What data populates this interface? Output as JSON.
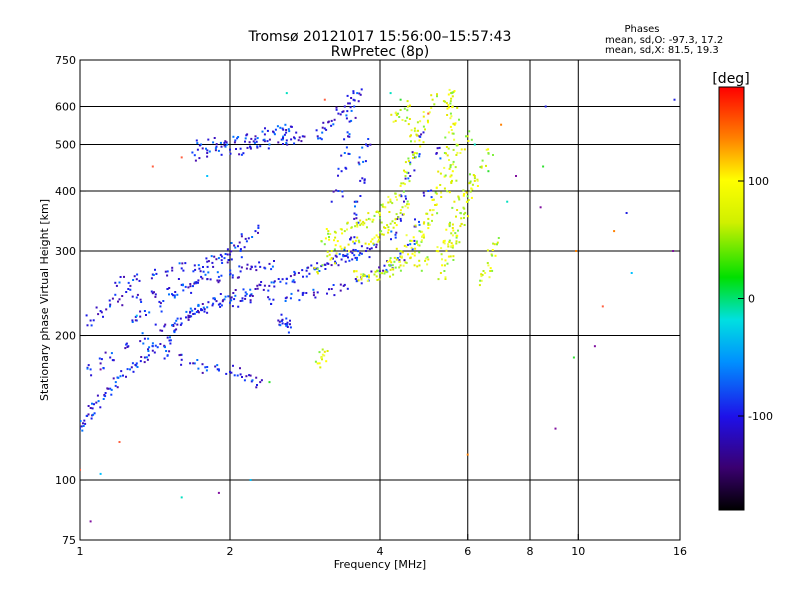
{
  "chart_data": {
    "type": "scatter",
    "title": "Tromsø 20121017 15:56:00–15:57:43",
    "subtitle": "RwPretec (8p)",
    "xlabel": "Frequency [MHz]",
    "ylabel": "Stationary phase Virtual Height [km]",
    "x_scale": "log",
    "y_scale": "log",
    "xlim": [
      1,
      16
    ],
    "ylim": [
      75,
      750
    ],
    "x_ticks": [
      1,
      2,
      4,
      6,
      8,
      10,
      16
    ],
    "y_ticks": [
      75,
      100,
      200,
      300,
      400,
      500,
      600,
      750
    ],
    "x_gridlines": [
      2,
      4,
      6,
      8,
      10
    ],
    "y_gridlines": [
      100,
      200,
      300,
      400,
      500,
      600
    ],
    "grid": true,
    "stats": {
      "heading": "Phases",
      "line_o": "mean, sd,O: -97.3, 17.2",
      "line_x": "mean, sd,X:  81.5, 19.3"
    },
    "colorbar": {
      "label": "[deg]",
      "range": [
        -180,
        180
      ],
      "ticks": [
        100,
        0,
        -100
      ],
      "tick_labels": [
        "100",
        "0",
        "-100"
      ]
    },
    "series": [
      {
        "mode": "O",
        "points": [
          [
            1.0,
            128
          ],
          [
            1.02,
            133
          ],
          [
            1.04,
            137
          ],
          [
            1.06,
            141
          ],
          [
            1.09,
            146
          ],
          [
            1.12,
            150
          ],
          [
            1.15,
            155
          ],
          [
            1.18,
            160
          ],
          [
            1.22,
            165
          ],
          [
            1.26,
            170
          ],
          [
            1.3,
            175
          ],
          [
            1.35,
            180
          ],
          [
            1.4,
            186
          ],
          [
            1.45,
            192
          ],
          [
            1.5,
            198
          ],
          [
            1.55,
            205
          ],
          [
            1.6,
            212
          ],
          [
            1.65,
            218
          ],
          [
            1.7,
            222
          ],
          [
            1.75,
            226
          ],
          [
            1.8,
            229
          ],
          [
            1.9,
            232
          ],
          [
            2.0,
            234
          ],
          [
            2.1,
            236
          ],
          [
            2.2,
            237
          ],
          [
            2.4,
            238
          ],
          [
            2.6,
            240
          ],
          [
            2.8,
            243
          ],
          [
            3.0,
            246
          ],
          [
            3.2,
            250
          ],
          [
            3.4,
            255
          ],
          [
            3.6,
            260
          ],
          [
            3.8,
            266
          ],
          [
            4.0,
            272
          ],
          [
            4.2,
            280
          ],
          [
            4.4,
            292
          ],
          [
            4.6,
            310
          ],
          [
            4.8,
            340
          ],
          [
            5.0,
            400
          ],
          [
            5.2,
            480
          ],
          [
            1.05,
            170
          ],
          [
            1.1,
            175
          ],
          [
            1.15,
            180
          ],
          [
            1.25,
            190
          ],
          [
            1.35,
            197
          ],
          [
            1.45,
            205
          ],
          [
            1.55,
            212
          ],
          [
            1.65,
            220
          ],
          [
            1.75,
            227
          ],
          [
            1.85,
            233
          ],
          [
            1.95,
            238
          ],
          [
            2.05,
            242
          ],
          [
            2.15,
            246
          ],
          [
            2.25,
            250
          ],
          [
            2.35,
            254
          ],
          [
            2.45,
            258
          ],
          [
            2.55,
            262
          ],
          [
            2.65,
            266
          ],
          [
            2.75,
            270
          ],
          [
            2.85,
            273
          ],
          [
            2.95,
            276
          ],
          [
            3.05,
            279
          ],
          [
            3.15,
            282
          ],
          [
            3.25,
            285
          ],
          [
            3.35,
            288
          ],
          [
            3.45,
            291
          ],
          [
            3.55,
            294
          ],
          [
            3.65,
            297
          ],
          [
            3.75,
            300
          ],
          [
            3.85,
            304
          ],
          [
            1.3,
            240
          ],
          [
            1.4,
            245
          ],
          [
            1.5,
            250
          ],
          [
            1.6,
            255
          ],
          [
            1.7,
            258
          ],
          [
            1.8,
            262
          ],
          [
            1.9,
            265
          ],
          [
            2.0,
            268
          ],
          [
            2.1,
            272
          ],
          [
            2.2,
            275
          ],
          [
            2.3,
            278
          ],
          [
            2.4,
            282
          ],
          [
            1.2,
            258
          ],
          [
            1.3,
            262
          ],
          [
            1.4,
            268
          ],
          [
            1.5,
            272
          ],
          [
            1.6,
            276
          ],
          [
            1.7,
            280
          ],
          [
            1.8,
            285
          ],
          [
            1.9,
            290
          ],
          [
            2.0,
            295
          ],
          [
            2.1,
            300
          ],
          [
            1.7,
            475
          ],
          [
            1.8,
            480
          ],
          [
            1.9,
            485
          ],
          [
            2.0,
            488
          ],
          [
            2.1,
            490
          ],
          [
            2.2,
            493
          ],
          [
            2.3,
            496
          ],
          [
            2.4,
            500
          ],
          [
            2.5,
            505
          ],
          [
            2.6,
            510
          ],
          [
            2.7,
            515
          ],
          [
            2.8,
            520
          ],
          [
            1.75,
            500
          ],
          [
            1.85,
            505
          ],
          [
            1.95,
            498
          ],
          [
            2.05,
            510
          ],
          [
            2.15,
            515
          ],
          [
            2.25,
            520
          ],
          [
            2.35,
            525
          ],
          [
            2.45,
            530
          ],
          [
            2.55,
            540
          ],
          [
            2.65,
            545
          ],
          [
            3.0,
            520
          ],
          [
            3.1,
            540
          ],
          [
            3.2,
            560
          ],
          [
            3.3,
            580
          ],
          [
            3.4,
            600
          ],
          [
            3.5,
            625
          ],
          [
            3.3,
            400
          ],
          [
            3.35,
            440
          ],
          [
            3.4,
            480
          ],
          [
            3.45,
            520
          ],
          [
            3.5,
            560
          ],
          [
            3.55,
            600
          ],
          [
            3.6,
            640
          ],
          [
            3.45,
            300
          ],
          [
            3.5,
            320
          ],
          [
            3.55,
            350
          ],
          [
            3.6,
            380
          ],
          [
            3.65,
            420
          ],
          [
            3.7,
            460
          ],
          [
            3.75,
            500
          ],
          [
            4.3,
            320
          ],
          [
            4.4,
            350
          ],
          [
            4.5,
            390
          ],
          [
            4.6,
            430
          ],
          [
            4.7,
            470
          ],
          [
            4.8,
            520
          ],
          [
            1.4,
            190
          ],
          [
            1.5,
            182
          ],
          [
            1.6,
            178
          ],
          [
            1.7,
            175
          ],
          [
            1.8,
            172
          ],
          [
            1.9,
            170
          ],
          [
            2.0,
            168
          ],
          [
            2.1,
            166
          ],
          [
            2.2,
            165
          ],
          [
            2.3,
            160
          ],
          [
            2.5,
            215
          ],
          [
            2.55,
            212
          ],
          [
            2.6,
            210
          ],
          [
            2.65,
            208
          ],
          [
            1.05,
            215
          ],
          [
            1.1,
            225
          ],
          [
            1.15,
            232
          ],
          [
            1.2,
            238
          ],
          [
            1.25,
            250
          ],
          [
            1.3,
            215
          ],
          [
            1.35,
            225
          ],
          [
            1.45,
            230
          ],
          [
            1.55,
            240
          ],
          [
            1.65,
            252
          ],
          [
            1.75,
            265
          ],
          [
            1.85,
            278
          ],
          [
            1.95,
            290
          ],
          [
            2.05,
            305
          ],
          [
            2.15,
            318
          ],
          [
            2.25,
            330
          ]
        ]
      },
      {
        "mode": "X",
        "points": [
          [
            3.6,
            265
          ],
          [
            3.7,
            266
          ],
          [
            3.8,
            267
          ],
          [
            3.9,
            268
          ],
          [
            4.0,
            270
          ],
          [
            4.1,
            272
          ],
          [
            4.2,
            274
          ],
          [
            4.3,
            277
          ],
          [
            4.4,
            280
          ],
          [
            4.5,
            284
          ],
          [
            4.6,
            290
          ],
          [
            4.7,
            298
          ],
          [
            4.8,
            308
          ],
          [
            4.9,
            322
          ],
          [
            5.0,
            340
          ],
          [
            5.1,
            365
          ],
          [
            5.2,
            395
          ],
          [
            5.3,
            435
          ],
          [
            5.4,
            480
          ],
          [
            5.5,
            530
          ],
          [
            5.55,
            580
          ],
          [
            5.6,
            630
          ],
          [
            3.4,
            330
          ],
          [
            3.5,
            335
          ],
          [
            3.6,
            340
          ],
          [
            3.7,
            345
          ],
          [
            3.8,
            350
          ],
          [
            3.9,
            355
          ],
          [
            4.0,
            360
          ],
          [
            4.1,
            370
          ],
          [
            4.2,
            380
          ],
          [
            4.3,
            395
          ],
          [
            4.4,
            410
          ],
          [
            4.5,
            430
          ],
          [
            4.6,
            455
          ],
          [
            4.7,
            480
          ],
          [
            4.8,
            510
          ],
          [
            4.9,
            545
          ],
          [
            5.0,
            580
          ],
          [
            5.1,
            620
          ],
          [
            5.3,
            270
          ],
          [
            5.4,
            280
          ],
          [
            5.5,
            292
          ],
          [
            5.6,
            305
          ],
          [
            5.7,
            320
          ],
          [
            5.8,
            338
          ],
          [
            5.9,
            358
          ],
          [
            6.0,
            380
          ],
          [
            6.1,
            405
          ],
          [
            6.2,
            430
          ],
          [
            4.8,
            280
          ],
          [
            5.0,
            288
          ],
          [
            5.2,
            300
          ],
          [
            5.4,
            315
          ],
          [
            5.6,
            335
          ],
          [
            5.8,
            360
          ],
          [
            6.0,
            390
          ],
          [
            6.2,
            420
          ],
          [
            6.4,
            450
          ],
          [
            6.6,
            480
          ],
          [
            4.2,
            290
          ],
          [
            4.4,
            300
          ],
          [
            4.6,
            315
          ],
          [
            4.8,
            330
          ],
          [
            5.0,
            350
          ],
          [
            5.2,
            375
          ],
          [
            5.4,
            405
          ],
          [
            5.6,
            440
          ],
          [
            5.8,
            480
          ],
          [
            6.0,
            520
          ],
          [
            3.8,
            310
          ],
          [
            3.9,
            320
          ],
          [
            4.0,
            328
          ],
          [
            4.1,
            335
          ],
          [
            4.2,
            342
          ],
          [
            4.3,
            350
          ],
          [
            4.4,
            360
          ],
          [
            4.5,
            372
          ],
          [
            5.6,
            600
          ],
          [
            5.65,
            550
          ],
          [
            5.7,
            500
          ],
          [
            5.62,
            460
          ],
          [
            5.58,
            420
          ],
          [
            5.64,
            380
          ],
          [
            5.52,
            340
          ],
          [
            5.48,
            310
          ],
          [
            3.1,
            310
          ],
          [
            3.15,
            330
          ],
          [
            3.2,
            300
          ],
          [
            3.25,
            320
          ],
          [
            4.5,
            560
          ],
          [
            4.55,
            600
          ],
          [
            4.6,
            520
          ],
          [
            4.7,
            540
          ],
          [
            4.4,
            590
          ],
          [
            4.3,
            560
          ],
          [
            3.0,
            275
          ],
          [
            3.2,
            290
          ],
          [
            3.4,
            305
          ],
          [
            3.6,
            320
          ],
          [
            6.4,
            260
          ],
          [
            6.5,
            270
          ],
          [
            6.6,
            280
          ],
          [
            6.7,
            295
          ],
          [
            6.8,
            310
          ],
          [
            3.0,
            175
          ],
          [
            3.05,
            180
          ],
          [
            3.1,
            185
          ],
          [
            5.55,
            640
          ],
          [
            5.45,
            610
          ]
        ]
      }
    ],
    "scattered_points": [
      [
        1.4,
        450
      ],
      [
        1.6,
        470
      ],
      [
        1.8,
        430
      ],
      [
        6.2,
        500
      ],
      [
        7.0,
        550
      ],
      [
        7.5,
        430
      ],
      [
        8.5,
        450
      ],
      [
        8.6,
        600
      ],
      [
        9.8,
        180
      ],
      [
        10.8,
        190
      ],
      [
        11.8,
        330
      ],
      [
        12.5,
        360
      ],
      [
        15.5,
        300
      ],
      [
        15.6,
        620
      ],
      [
        1.2,
        120
      ],
      [
        1.1,
        103
      ],
      [
        1.0,
        105
      ],
      [
        1.05,
        82
      ],
      [
        1.6,
        92
      ],
      [
        1.9,
        94
      ],
      [
        2.4,
        160
      ],
      [
        6.0,
        113
      ],
      [
        9.0,
        128
      ],
      [
        1.1,
        170
      ],
      [
        1.3,
        220
      ],
      [
        2.8,
        245
      ],
      [
        2.2,
        100
      ],
      [
        3.2,
        380
      ],
      [
        2.6,
        640
      ],
      [
        3.1,
        620
      ],
      [
        4.2,
        640
      ],
      [
        4.4,
        620
      ],
      [
        5.0,
        580
      ],
      [
        6.6,
        440
      ],
      [
        7.2,
        380
      ],
      [
        8.4,
        370
      ],
      [
        9.9,
        300
      ],
      [
        11.2,
        230
      ],
      [
        12.8,
        270
      ]
    ]
  }
}
